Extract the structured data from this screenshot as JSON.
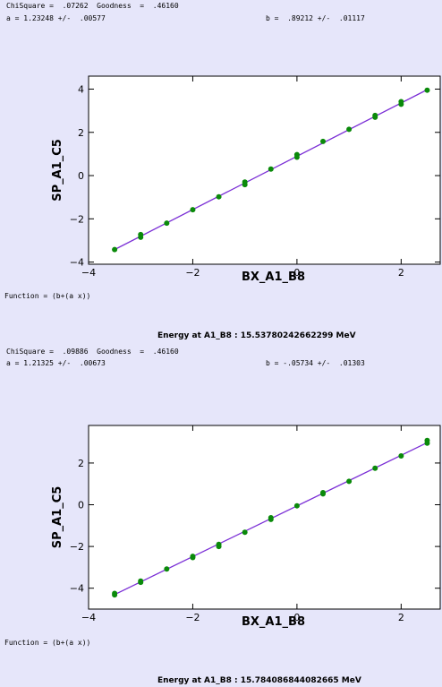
{
  "chart_data": [
    {
      "type": "scatter",
      "stats": {
        "chisquare_text": "ChiSquare =  .07262  Goodness  =  .46160",
        "a_text": "a = 1.23248 +/-  .00577",
        "b_text": "b =  .89212 +/-  .01117"
      },
      "function_text": "Function = (b+(a x))",
      "xlabel": "BX_A1_B8",
      "ylabel": "SP_A1_C5",
      "xlim": [
        -4,
        2.75
      ],
      "ylim": [
        -4.1,
        4.6
      ],
      "xticks": [
        -4,
        -2,
        0,
        2
      ],
      "yticks": [
        -4,
        -2,
        0,
        2,
        4
      ],
      "fit": {
        "a": 1.23248,
        "b": 0.89212,
        "x_range": [
          -3.5,
          2.5
        ],
        "color": "#7b2fd6"
      },
      "point_color": "#0a8a0a",
      "points": [
        {
          "x": -3.5,
          "y": -3.42
        },
        {
          "x": -3.0,
          "y": -2.73
        },
        {
          "x": -3.0,
          "y": -2.85
        },
        {
          "x": -2.5,
          "y": -2.2
        },
        {
          "x": -2.0,
          "y": -1.58
        },
        {
          "x": -1.5,
          "y": -0.98
        },
        {
          "x": -1.0,
          "y": -0.3
        },
        {
          "x": -1.0,
          "y": -0.42
        },
        {
          "x": -0.5,
          "y": 0.3
        },
        {
          "x": 0.0,
          "y": 0.85
        },
        {
          "x": 0.0,
          "y": 0.97
        },
        {
          "x": 0.5,
          "y": 1.58
        },
        {
          "x": 1.0,
          "y": 2.14
        },
        {
          "x": 1.5,
          "y": 2.7
        },
        {
          "x": 1.5,
          "y": 2.78
        },
        {
          "x": 2.0,
          "y": 3.3
        },
        {
          "x": 2.0,
          "y": 3.42
        },
        {
          "x": 2.5,
          "y": 3.95
        }
      ],
      "energy_text": "Energy at A1_B8 : 15.53780242662299 MeV"
    },
    {
      "type": "scatter",
      "stats": {
        "chisquare_text": "ChiSquare =  .09886  Goodness  =  .46160",
        "a_text": "a = 1.21325 +/-  .00673",
        "b_text": "b = -.05734 +/-  .01303"
      },
      "function_text": "Function = (b+(a x))",
      "xlabel": "BX_A1_B8",
      "ylabel": "SP_A1_C5",
      "xlim": [
        -4,
        2.75
      ],
      "ylim": [
        -5.0,
        3.8
      ],
      "xticks": [
        -4,
        -2,
        0,
        2
      ],
      "yticks": [
        -4,
        -2,
        0,
        2
      ],
      "fit": {
        "a": 1.21325,
        "b": -0.05734,
        "x_range": [
          -3.5,
          2.5
        ],
        "color": "#7b2fd6"
      },
      "point_color": "#0a8a0a",
      "points": [
        {
          "x": -3.5,
          "y": -4.25
        },
        {
          "x": -3.5,
          "y": -4.32
        },
        {
          "x": -3.0,
          "y": -3.66
        },
        {
          "x": -3.0,
          "y": -3.72
        },
        {
          "x": -2.5,
          "y": -3.08
        },
        {
          "x": -2.0,
          "y": -2.47
        },
        {
          "x": -2.0,
          "y": -2.53
        },
        {
          "x": -1.5,
          "y": -1.9
        },
        {
          "x": -1.5,
          "y": -2.0
        },
        {
          "x": -1.0,
          "y": -1.32
        },
        {
          "x": -0.5,
          "y": -0.62
        },
        {
          "x": -0.5,
          "y": -0.7
        },
        {
          "x": 0.0,
          "y": -0.05
        },
        {
          "x": 0.5,
          "y": 0.52
        },
        {
          "x": 0.5,
          "y": 0.58
        },
        {
          "x": 1.0,
          "y": 1.12
        },
        {
          "x": 1.5,
          "y": 1.75
        },
        {
          "x": 2.0,
          "y": 2.34
        },
        {
          "x": 2.5,
          "y": 2.95
        },
        {
          "x": 2.5,
          "y": 3.08
        }
      ],
      "energy_text": "Energy at A1_B8 : 15.784086844082665 MeV"
    }
  ]
}
